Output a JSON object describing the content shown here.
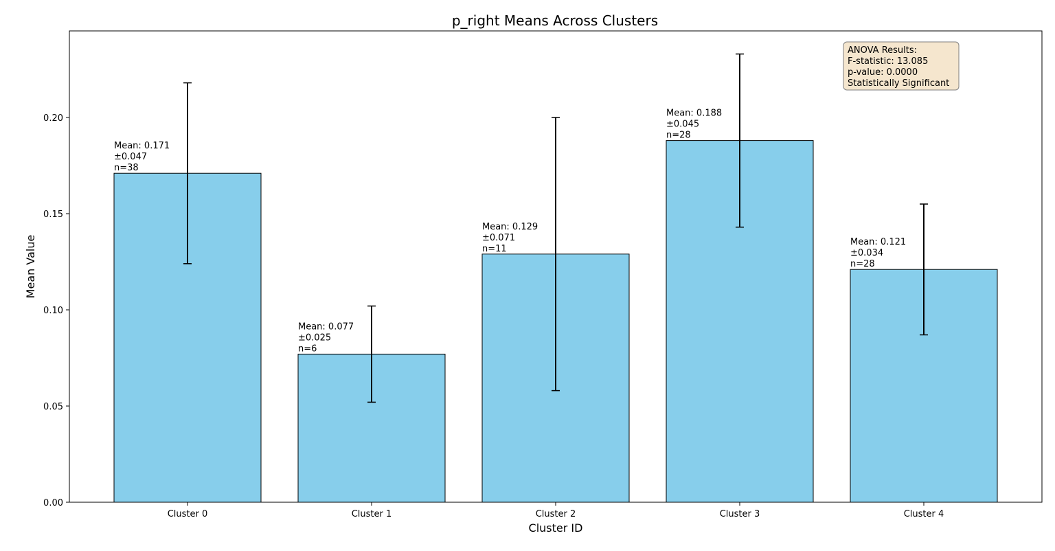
{
  "chart_data": {
    "type": "bar",
    "title": "p_right Means Across Clusters",
    "xlabel": "Cluster ID",
    "ylabel": "Mean Value",
    "ylim": [
      0,
      0.245
    ],
    "yticks": [
      "0.00",
      "0.05",
      "0.10",
      "0.15",
      "0.20"
    ],
    "categories": [
      "Cluster 0",
      "Cluster 1",
      "Cluster 2",
      "Cluster 3",
      "Cluster 4"
    ],
    "values": [
      0.171,
      0.077,
      0.129,
      0.188,
      0.121
    ],
    "errors": [
      0.047,
      0.025,
      0.071,
      0.045,
      0.034
    ],
    "counts": [
      38,
      6,
      11,
      28,
      28
    ],
    "bar_labels": [
      [
        "Mean: 0.171",
        "±0.047",
        "n=38"
      ],
      [
        "Mean: 0.077",
        "±0.025",
        "n=6"
      ],
      [
        "Mean: 0.129",
        "±0.071",
        "n=11"
      ],
      [
        "Mean: 0.188",
        "±0.045",
        "n=28"
      ],
      [
        "Mean: 0.121",
        "±0.034",
        "n=28"
      ]
    ],
    "bar_color": "#87CEEB",
    "edge_color": "#000000",
    "grid": false,
    "annotation": {
      "lines": [
        "ANOVA Results:",
        "F-statistic: 13.085",
        "p-value: 0.0000",
        "Statistically Significant"
      ],
      "background": "#F5E6CE",
      "placement": "top-right"
    }
  }
}
